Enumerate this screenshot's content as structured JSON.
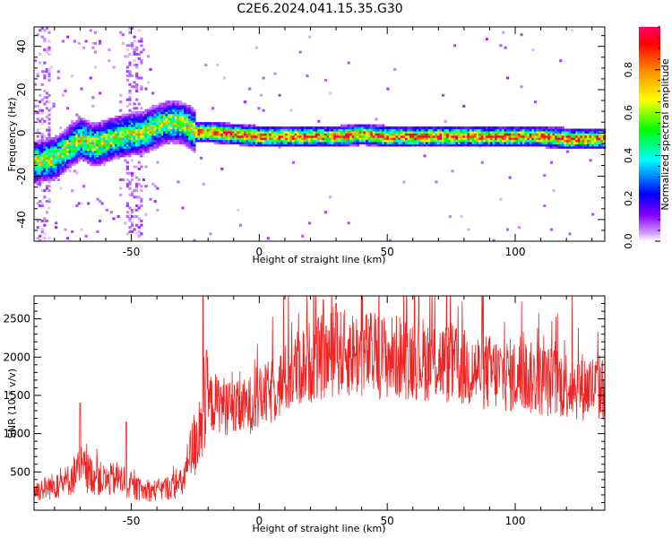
{
  "title": "C2E6.2024.041.15.35.G30",
  "chart_data": [
    {
      "type": "heatmap",
      "title": "C2E6.2024.041.15.35.G30",
      "xlabel": "Height of straight line (km)",
      "ylabel": "Frequency (Hz)",
      "xlim": [
        -88,
        135
      ],
      "ylim": [
        -50,
        49
      ],
      "x_ticks": [
        "-50",
        "0",
        "50",
        "100"
      ],
      "x_tick_values": [
        -50,
        0,
        50,
        100
      ],
      "y_ticks": [
        "-40",
        "-20",
        "0",
        "20",
        "40"
      ],
      "y_tick_values": [
        -40,
        -20,
        0,
        20,
        40
      ],
      "colorbar": {
        "label": "Normalized spectral amplitude",
        "range": [
          0,
          1
        ],
        "ticks": [
          "0.0",
          "0.2",
          "0.4",
          "0.6",
          "0.8"
        ],
        "tick_values": [
          0,
          0.2,
          0.4,
          0.6,
          0.8
        ],
        "colormap": [
          "#ffffff",
          "#cc99ff",
          "#8800ff",
          "#0000ff",
          "#00ffff",
          "#00ff00",
          "#ffff00",
          "#ff8800",
          "#ff0000",
          "#ff0066"
        ]
      },
      "ridge": {
        "x": [
          -88,
          -80,
          -75,
          -70,
          -65,
          -60,
          -55,
          -50,
          -45,
          -40,
          -35,
          -30,
          -25,
          -20,
          -10,
          0,
          10,
          20,
          30,
          40,
          50,
          60,
          70,
          80,
          90,
          100,
          110,
          120,
          130,
          135
        ],
        "y": [
          -14,
          -12,
          -7,
          -3,
          -6,
          -4,
          -2,
          -1,
          0,
          3,
          5,
          4,
          0,
          0,
          -1,
          -2,
          -2,
          -2,
          -2,
          -1,
          -2,
          -2,
          -2,
          -2,
          -2,
          -2,
          -2,
          -3,
          -3,
          -3
        ]
      },
      "grid": false
    },
    {
      "type": "line",
      "xlabel": "Height of straight line (km)",
      "ylabel": "SNR (10 * v/v)",
      "xlim": [
        -88,
        135
      ],
      "ylim": [
        0,
        2800
      ],
      "x_ticks": [
        "-50",
        "0",
        "50",
        "100"
      ],
      "x_tick_values": [
        -50,
        0,
        50,
        100
      ],
      "y_ticks": [
        "500",
        "1000",
        "1500",
        "2000",
        "2500"
      ],
      "y_tick_values": [
        500,
        1000,
        1500,
        2000,
        2500
      ],
      "series": [
        {
          "color": "#ee2222",
          "envelope": {
            "x": [
              -88,
              -80,
              -75,
              -70,
              -65,
              -60,
              -55,
              -50,
              -45,
              -40,
              -35,
              -30,
              -27,
              -25,
              -22,
              -20,
              -15,
              -10,
              -5,
              0,
              5,
              10,
              15,
              20,
              25,
              30,
              35,
              40,
              50,
              60,
              70,
              80,
              90,
              100,
              110,
              120,
              130,
              135
            ],
            "y": [
              250,
              320,
              380,
              550,
              450,
              380,
              420,
              300,
              250,
              260,
              300,
              350,
              700,
              900,
              1300,
              1400,
              1400,
              1300,
              1350,
              1450,
              1550,
              1700,
              1850,
              1950,
              2000,
              2050,
              2050,
              2050,
              2000,
              2000,
              1950,
              1850,
              1800,
              1750,
              1700,
              1650,
              1600,
              1600
            ]
          },
          "peaks": {
            "x": [
              -70,
              -52,
              -22,
              25,
              30
            ],
            "y": [
              1400,
              1150,
              2800,
              2750,
              2700
            ]
          }
        }
      ],
      "grid": false
    }
  ]
}
